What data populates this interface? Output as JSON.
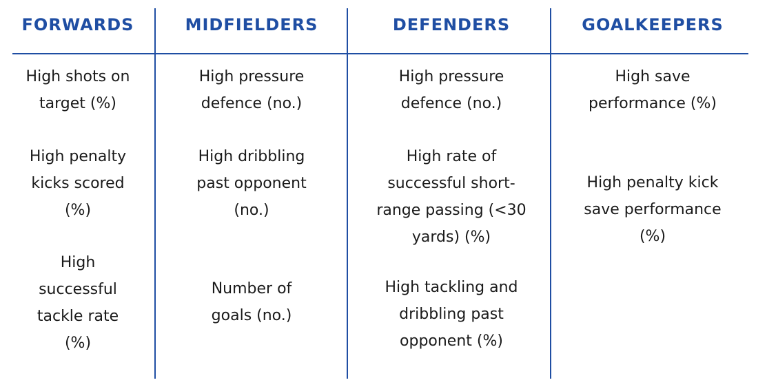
{
  "colors": {
    "accent": "#1f4ea3",
    "text": "#1a1a1a"
  },
  "columns": [
    {
      "header": "FORWARDS",
      "items": [
        [
          "High shots on",
          "target (%)"
        ],
        [
          "High penalty",
          "kicks scored",
          "(%)"
        ],
        [
          "High",
          "successful",
          "tackle rate",
          "(%)"
        ]
      ]
    },
    {
      "header": "MIDFIELDERS",
      "items": [
        [
          "High pressure",
          "defence (no.)"
        ],
        [
          "High dribbling",
          "past opponent",
          "(no.)"
        ],
        [
          "Number of",
          "goals (no.)"
        ]
      ]
    },
    {
      "header": "DEFENDERS",
      "items": [
        [
          "High pressure",
          "defence (no.)"
        ],
        [
          "High rate of",
          "successful short-",
          "range passing (<30",
          "yards) (%)"
        ],
        [
          "High tackling and",
          "dribbling past",
          "opponent (%)"
        ]
      ]
    },
    {
      "header": "GOALKEEPERS",
      "items": [
        [
          "High save",
          "performance (%)"
        ],
        [
          "High penalty kick",
          "save performance",
          "(%)"
        ]
      ]
    }
  ]
}
